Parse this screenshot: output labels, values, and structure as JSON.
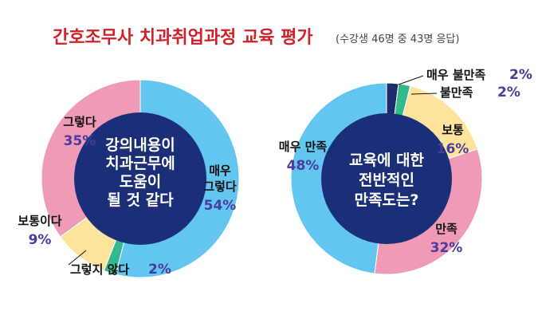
{
  "title": {
    "main": "간호조무사 치과취업과정 교육 평가",
    "sub": "(수강생 46명 중 43명 응답)"
  },
  "chart_data": [
    {
      "type": "pie",
      "title": "강의내용이 치과근무에 도움이 될 것 같다",
      "center_lines": [
        "강의내용이",
        "치과근무에",
        "도움이",
        "될 것 같다"
      ],
      "categories": [
        "매우 그렇다",
        "그렇지 않다",
        "보통이다",
        "그렇다"
      ],
      "values": [
        54,
        2,
        9,
        35
      ],
      "colors": [
        "#62c6f0",
        "#34b98e",
        "#fde39b",
        "#ef9bb5"
      ],
      "labels": [
        {
          "name": [
            "매우",
            "그렇다"
          ],
          "pct": "54%"
        },
        {
          "name": [
            "그렇지 않다"
          ],
          "pct": "2%"
        },
        {
          "name": [
            "보통이다"
          ],
          "pct": "9%"
        },
        {
          "name": [
            "그렇다"
          ],
          "pct": "35%"
        }
      ]
    },
    {
      "type": "pie",
      "title": "교육에 대한 전반적인 만족도는?",
      "center_lines": [
        "교육에 대한",
        "전반적인",
        "만족도는?"
      ],
      "categories": [
        "매우 불만족",
        "불만족",
        "보통",
        "만족",
        "매우 만족"
      ],
      "values": [
        2,
        2,
        16,
        32,
        48
      ],
      "colors": [
        "#1d2d6b",
        "#34b98e",
        "#fde39b",
        "#ef9bb5",
        "#62c6f0"
      ],
      "labels": [
        {
          "name": [
            "매우 불만족"
          ],
          "pct": "2%"
        },
        {
          "name": [
            "불만족"
          ],
          "pct": "2%"
        },
        {
          "name": [
            "보통"
          ],
          "pct": "16%"
        },
        {
          "name": [
            "만족"
          ],
          "pct": "32%"
        },
        {
          "name": [
            "매우 만족"
          ],
          "pct": "48%"
        }
      ]
    }
  ]
}
